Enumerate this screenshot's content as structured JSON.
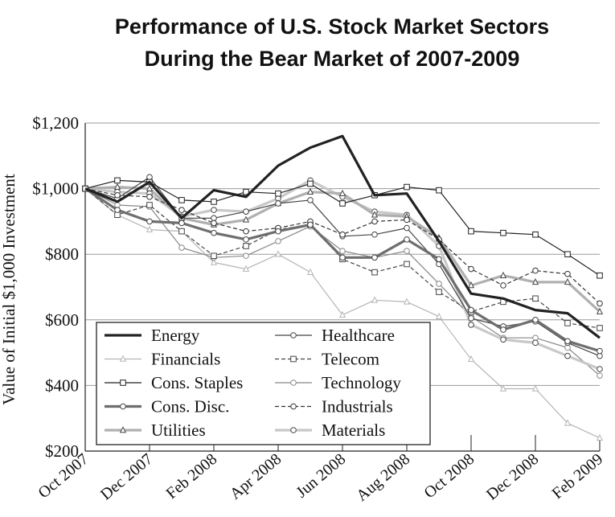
{
  "chart_data": {
    "type": "line",
    "title": [
      "Performance of U.S. Stock Market Sectors",
      "During the Bear Market of 2007-2009"
    ],
    "ylabel": "Value of Initial $1,000 Investment",
    "xlabel": "",
    "ylim": [
      200,
      1200
    ],
    "yticks": [
      200,
      400,
      600,
      800,
      1000,
      1200
    ],
    "ytick_labels": [
      "$200",
      "$400",
      "$600",
      "$800",
      "$1,000",
      "$1,200"
    ],
    "xtick_labels": [
      "Oct 2007",
      "Dec 2007",
      "Feb 2008",
      "Apr 2008",
      "Jun 2008",
      "Aug 2008",
      "Oct 2008",
      "Dec 2008",
      "Feb 2009"
    ],
    "x": [
      "Oct 2007",
      "Nov 2007",
      "Dec 2007",
      "Jan 2008",
      "Feb 2008",
      "Mar 2008",
      "Apr 2008",
      "May 2008",
      "Jun 2008",
      "Jul 2008",
      "Aug 2008",
      "Sep 2008",
      "Oct 2008",
      "Nov 2008",
      "Dec 2008",
      "Jan 2009",
      "Feb 2009"
    ],
    "grid": "horizontal",
    "legend_position": "lower-left",
    "series": [
      {
        "name": "Energy",
        "color": "#222222",
        "width": 3.2,
        "dash": "",
        "marker": "none",
        "values": [
          1000,
          960,
          1020,
          910,
          995,
          975,
          1070,
          1125,
          1160,
          980,
          985,
          840,
          680,
          665,
          630,
          620,
          545
        ]
      },
      {
        "name": "Financials",
        "color": "#b5b5b5",
        "width": 1.2,
        "dash": "",
        "marker": "triangle",
        "values": [
          1000,
          920,
          875,
          870,
          775,
          755,
          800,
          745,
          615,
          660,
          655,
          610,
          480,
          390,
          390,
          285,
          240
        ]
      },
      {
        "name": "Cons. Staples",
        "color": "#222222",
        "width": 1.2,
        "dash": "",
        "marker": "square",
        "values": [
          1000,
          1025,
          1020,
          965,
          960,
          990,
          985,
          1015,
          955,
          980,
          1005,
          995,
          870,
          865,
          860,
          800,
          735
        ]
      },
      {
        "name": "Cons. Disc.",
        "color": "#6e6e6e",
        "width": 3.2,
        "dash": "",
        "marker": "circle",
        "values": [
          1000,
          935,
          900,
          895,
          865,
          845,
          870,
          890,
          790,
          790,
          845,
          785,
          630,
          570,
          600,
          535,
          505
        ]
      },
      {
        "name": "Utilities",
        "color": "#b0b0b0",
        "width": 3.2,
        "dash": "",
        "marker": "triangle",
        "values": [
          1000,
          1005,
          1000,
          910,
          890,
          905,
          955,
          990,
          985,
          920,
          915,
          850,
          705,
          735,
          715,
          715,
          625
        ]
      },
      {
        "name": "Healthcare",
        "color": "#444444",
        "width": 1.2,
        "dash": "",
        "marker": "circle",
        "values": [
          1000,
          970,
          1035,
          910,
          910,
          930,
          955,
          965,
          855,
          860,
          880,
          770,
          605,
          580,
          595,
          530,
          490
        ]
      },
      {
        "name": "Telecom",
        "color": "#444444",
        "width": 1.2,
        "dash": "5,3",
        "marker": "square",
        "values": [
          1000,
          920,
          950,
          870,
          795,
          825,
          875,
          890,
          785,
          745,
          770,
          685,
          625,
          655,
          665,
          590,
          575
        ]
      },
      {
        "name": "Technology",
        "color": "#888888",
        "width": 1.2,
        "dash": "",
        "marker": "circle",
        "values": [
          1000,
          950,
          945,
          820,
          790,
          795,
          840,
          885,
          810,
          790,
          810,
          710,
          610,
          545,
          545,
          515,
          430
        ]
      },
      {
        "name": "Industrials",
        "color": "#333333",
        "width": 1.2,
        "dash": "5,3",
        "marker": "circle",
        "values": [
          1000,
          980,
          975,
          935,
          895,
          870,
          880,
          900,
          860,
          900,
          905,
          845,
          755,
          705,
          750,
          740,
          650
        ]
      },
      {
        "name": "Materials",
        "color": "#c8c8c8",
        "width": 3.2,
        "dash": "",
        "marker": "circle",
        "values": [
          1000,
          990,
          985,
          915,
          935,
          930,
          970,
          1025,
          975,
          930,
          920,
          825,
          585,
          540,
          530,
          490,
          450
        ]
      }
    ],
    "legend_entries": [
      {
        "series": "Energy"
      },
      {
        "series": "Healthcare"
      },
      {
        "series": "Financials"
      },
      {
        "series": "Telecom"
      },
      {
        "series": "Cons. Staples"
      },
      {
        "series": "Technology"
      },
      {
        "series": "Cons. Disc."
      },
      {
        "series": "Industrials"
      },
      {
        "series": "Utilities"
      },
      {
        "series": "Materials"
      }
    ]
  }
}
